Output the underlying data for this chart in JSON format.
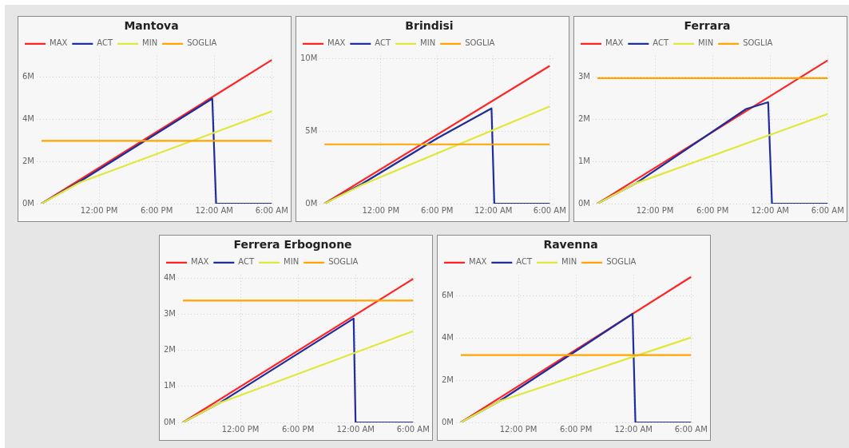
{
  "chart_data": [
    {
      "type": "line",
      "title": "Mantova",
      "legend": "top left",
      "grid": true,
      "xlim": [
        "--01-01T05:30",
        "--01-02T06:30"
      ],
      "xticks": [
        {
          "value": "--01-01T12:00",
          "label": "12:00 PM"
        },
        {
          "value": "--01-01T18:00",
          "label": "6:00 PM"
        },
        {
          "value": "--01-02T00:00",
          "label": "12:00 AM"
        },
        {
          "value": "--01-02T06:00",
          "label": "6:00 AM"
        }
      ],
      "ylim": [
        0,
        7
      ],
      "yticks": [
        {
          "value": 0,
          "label": "0M"
        },
        {
          "value": 2,
          "label": "2M"
        },
        {
          "value": 4,
          "label": "4M"
        },
        {
          "value": 6,
          "label": "6M"
        }
      ],
      "series": [
        {
          "name": "MAX",
          "color": "#ff2424",
          "x": [
            "--01-01T06:00",
            "--01-02T06:00"
          ],
          "values": [
            0,
            6.8
          ]
        },
        {
          "name": "ACT",
          "color": "#1f2c9c",
          "x": [
            "--01-01T06:00",
            "--01-01T10:00",
            "--01-01T23:48",
            "--01-02T00:12",
            "--01-02T06:00"
          ],
          "values": [
            0,
            1.05,
            4.97,
            0,
            0
          ]
        },
        {
          "name": "MIN",
          "color": "#e1e83c",
          "x": [
            "--01-01T06:00",
            "--01-01T10:00",
            "--01-02T06:00"
          ],
          "values": [
            0,
            1.0,
            4.37
          ]
        },
        {
          "name": "SOGLIA",
          "color": "#ffa400",
          "x": [
            "--01-01T06:00",
            "--01-02T06:00"
          ],
          "values": [
            2.97,
            2.97
          ]
        }
      ]
    },
    {
      "type": "line",
      "title": "Brindisi",
      "legend": "top left",
      "grid": true,
      "xlim": [
        "--01-01T05:30",
        "--01-02T06:30"
      ],
      "xticks": [
        {
          "value": "--01-01T12:00",
          "label": "12:00 PM"
        },
        {
          "value": "--01-01T18:00",
          "label": "6:00 PM"
        },
        {
          "value": "--01-02T00:00",
          "label": "12:00 AM"
        },
        {
          "value": "--01-02T06:00",
          "label": "6:00 AM"
        }
      ],
      "ylim": [
        0,
        10.2
      ],
      "yticks": [
        {
          "value": 0,
          "label": "0M"
        },
        {
          "value": 5,
          "label": "5M"
        },
        {
          "value": 10,
          "label": "10M"
        }
      ],
      "series": [
        {
          "name": "MAX",
          "color": "#ff2424",
          "x": [
            "--01-01T06:00",
            "--01-02T06:00"
          ],
          "values": [
            0,
            9.5
          ]
        },
        {
          "name": "ACT",
          "color": "#1f2c9c",
          "x": [
            "--01-01T06:00",
            "--01-01T10:00",
            "--01-01T18:00",
            "--01-01T23:48",
            "--01-02T00:06",
            "--01-02T06:00"
          ],
          "values": [
            0,
            1.36,
            4.5,
            6.57,
            0,
            0
          ]
        },
        {
          "name": "MIN",
          "color": "#e1e83c",
          "x": [
            "--01-01T06:00",
            "--01-01T10:00",
            "--01-02T06:00"
          ],
          "values": [
            0,
            1.3,
            6.7
          ]
        },
        {
          "name": "SOGLIA",
          "color": "#ffa400",
          "x": [
            "--01-01T06:00",
            "--01-02T06:00"
          ],
          "values": [
            4.09,
            4.09
          ]
        }
      ]
    },
    {
      "type": "line",
      "title": "Ferrara",
      "legend": "top left",
      "grid": true,
      "xlim": [
        "--01-01T05:30",
        "--01-02T06:30"
      ],
      "xticks": [
        {
          "value": "--01-01T12:00",
          "label": "12:00 PM"
        },
        {
          "value": "--01-01T18:00",
          "label": "6:00 PM"
        },
        {
          "value": "--01-02T00:00",
          "label": "12:00 AM"
        },
        {
          "value": "--01-02T06:00",
          "label": "6:00 AM"
        }
      ],
      "ylim": [
        0,
        3.5
      ],
      "yticks": [
        {
          "value": 0,
          "label": "0M"
        },
        {
          "value": 1,
          "label": "1M"
        },
        {
          "value": 2,
          "label": "2M"
        },
        {
          "value": 3,
          "label": "3M"
        }
      ],
      "series": [
        {
          "name": "MAX",
          "color": "#ff2424",
          "x": [
            "--01-01T06:00",
            "--01-02T06:00"
          ],
          "values": [
            0,
            3.39
          ]
        },
        {
          "name": "ACT",
          "color": "#1f2c9c",
          "x": [
            "--01-01T06:00",
            "--01-01T10:00",
            "--01-01T21:30",
            "--01-01T23:48",
            "--01-02T00:12",
            "--01-02T06:00"
          ],
          "values": [
            0,
            0.48,
            2.24,
            2.4,
            0,
            0
          ]
        },
        {
          "name": "MIN",
          "color": "#e1e83c",
          "x": [
            "--01-01T06:00",
            "--01-01T10:00",
            "--01-02T06:00"
          ],
          "values": [
            0,
            0.48,
            2.12
          ]
        },
        {
          "name": "SOGLIA",
          "color": "#ffa400",
          "x": [
            "--01-01T06:00",
            "--01-02T06:00"
          ],
          "values": [
            2.97,
            2.97
          ]
        }
      ]
    },
    {
      "type": "line",
      "title": "Ferrera Erbognone",
      "legend": "top left",
      "grid": true,
      "xlim": [
        "--01-01T05:30",
        "--01-02T06:30"
      ],
      "xticks": [
        {
          "value": "--01-01T12:00",
          "label": "12:00 PM"
        },
        {
          "value": "--01-01T18:00",
          "label": "6:00 PM"
        },
        {
          "value": "--01-02T00:00",
          "label": "12:00 AM"
        },
        {
          "value": "--01-02T06:00",
          "label": "6:00 AM"
        }
      ],
      "ylim": [
        0,
        4.1
      ],
      "yticks": [
        {
          "value": 0,
          "label": "0M"
        },
        {
          "value": 1,
          "label": "1M"
        },
        {
          "value": 2,
          "label": "2M"
        },
        {
          "value": 3,
          "label": "3M"
        },
        {
          "value": 4,
          "label": "4M"
        }
      ],
      "series": [
        {
          "name": "MAX",
          "color": "#ff2424",
          "x": [
            "--01-01T06:00",
            "--01-02T06:00"
          ],
          "values": [
            0,
            3.98
          ]
        },
        {
          "name": "ACT",
          "color": "#1f2c9c",
          "x": [
            "--01-01T06:00",
            "--01-01T09:45",
            "--01-01T23:48",
            "--01-02T00:00",
            "--01-02T06:00"
          ],
          "values": [
            0,
            0.53,
            2.88,
            0,
            0
          ]
        },
        {
          "name": "MIN",
          "color": "#e1e83c",
          "x": [
            "--01-01T06:00",
            "--01-01T09:45",
            "--01-02T06:00"
          ],
          "values": [
            0,
            0.53,
            2.53
          ]
        },
        {
          "name": "SOGLIA",
          "color": "#ffa400",
          "x": [
            "--01-01T06:00",
            "--01-02T06:00"
          ],
          "values": [
            3.38,
            3.38
          ]
        }
      ]
    },
    {
      "type": "line",
      "title": "Ravenna",
      "legend": "top left",
      "grid": true,
      "xlim": [
        "--01-01T05:30",
        "--01-02T06:30"
      ],
      "xticks": [
        {
          "value": "--01-01T12:00",
          "label": "12:00 PM"
        },
        {
          "value": "--01-01T18:00",
          "label": "6:00 PM"
        },
        {
          "value": "--01-02T00:00",
          "label": "12:00 AM"
        },
        {
          "value": "--01-02T06:00",
          "label": "6:00 AM"
        }
      ],
      "ylim": [
        0,
        7
      ],
      "yticks": [
        {
          "value": 0,
          "label": "0M"
        },
        {
          "value": 2,
          "label": "2M"
        },
        {
          "value": 4,
          "label": "4M"
        },
        {
          "value": 6,
          "label": "6M"
        }
      ],
      "series": [
        {
          "name": "MAX",
          "color": "#ff2424",
          "x": [
            "--01-01T06:00",
            "--01-02T06:00"
          ],
          "values": [
            0,
            6.89
          ]
        },
        {
          "name": "ACT",
          "color": "#1f2c9c",
          "x": [
            "--01-01T06:00",
            "--01-01T10:00",
            "--01-01T23:54",
            "--01-02T00:12",
            "--01-02T06:00"
          ],
          "values": [
            0,
            1.0,
            5.14,
            0,
            0
          ]
        },
        {
          "name": "MIN",
          "color": "#e1e83c",
          "x": [
            "--01-01T06:00",
            "--01-01T10:00",
            "--01-02T06:00"
          ],
          "values": [
            0,
            1.0,
            4.02
          ]
        },
        {
          "name": "SOGLIA",
          "color": "#ffa400",
          "x": [
            "--01-01T06:00",
            "--01-02T06:00"
          ],
          "values": [
            3.19,
            3.19
          ]
        }
      ]
    }
  ]
}
